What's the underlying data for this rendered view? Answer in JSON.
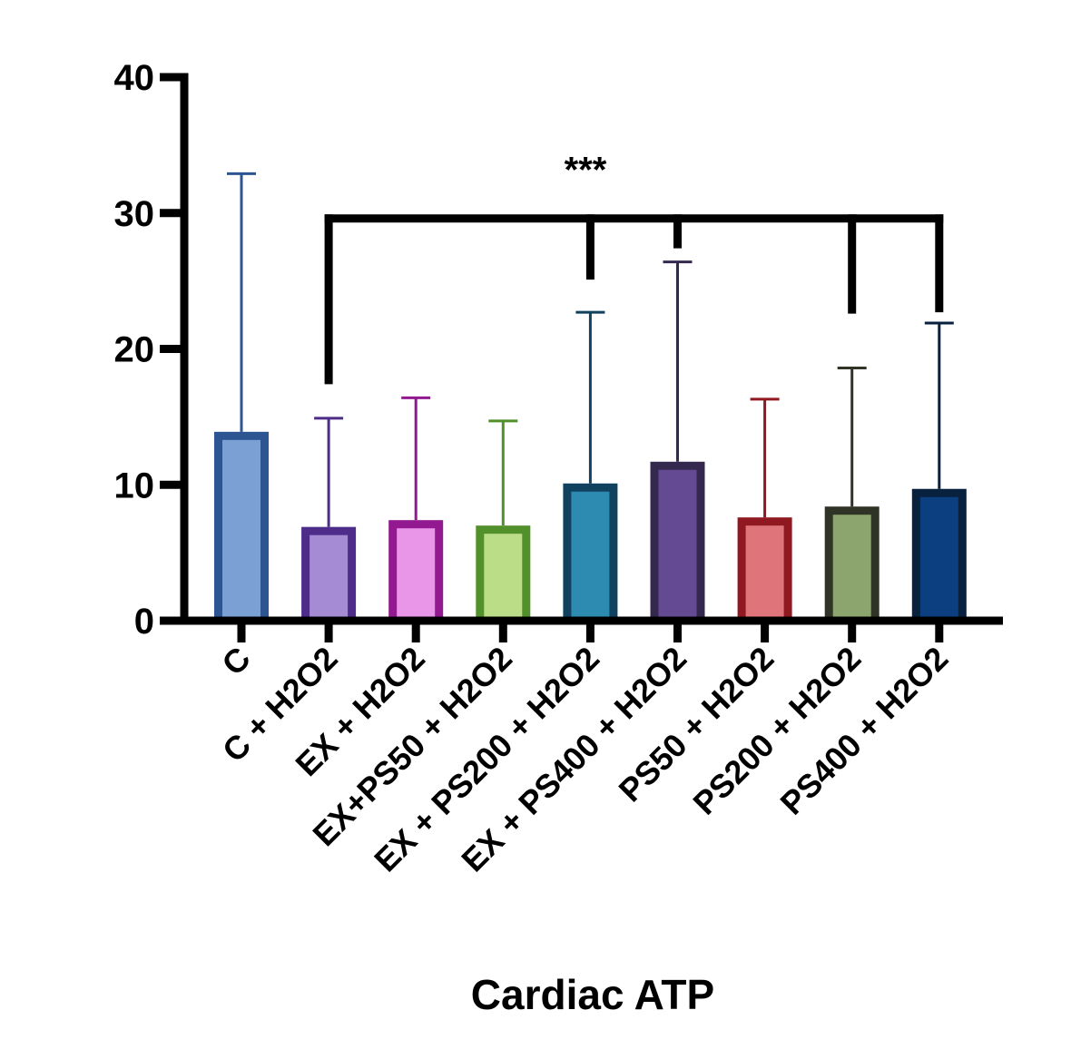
{
  "chart_data": {
    "type": "bar",
    "title": "",
    "xlabel": "Cardiac ATP",
    "ylabel": "",
    "ylim": [
      0,
      40
    ],
    "yticks": [
      0,
      10,
      20,
      30,
      40
    ],
    "grid": false,
    "legend": "none",
    "categories": [
      "C",
      "C + H2O2",
      "EX + H2O2",
      "EX+PS50 + H2O2",
      "EX + PS200 + H2O2",
      "EX + PS400 + H2O2",
      "PS50 + H2O2",
      "PS200 + H2O2",
      "PS400 + H2O2"
    ],
    "values": [
      13.9,
      6.9,
      7.4,
      7.0,
      10.1,
      11.7,
      7.6,
      8.4,
      9.7
    ],
    "error_upper": [
      32.9,
      14.9,
      16.4,
      14.7,
      22.7,
      26.4,
      16.3,
      18.6,
      21.9
    ],
    "fill_colors": [
      "#7ba1d4",
      "#a58bd4",
      "#e996e8",
      "#bcdd88",
      "#2d8ab0",
      "#634a92",
      "#df747a",
      "#8ca56f",
      "#0b3f7f"
    ],
    "edge_colors": [
      "#2c5592",
      "#4d2c8a",
      "#92198f",
      "#52902b",
      "#10415e",
      "#34284f",
      "#901921",
      "#303426",
      "#08213f"
    ],
    "annotations": [
      {
        "type": "significance-bracket",
        "label": "***",
        "bracket_y": 29.6,
        "from_category": "C + H2O2",
        "from_drop_to": 17.4,
        "to_categories": [
          "EX + PS200 + H2O2",
          "EX + PS400 + H2O2",
          "PS200 + H2O2",
          "PS400 + H2O2"
        ],
        "drop_to": [
          25.1,
          27.4,
          22.6,
          22.7
        ]
      }
    ]
  }
}
